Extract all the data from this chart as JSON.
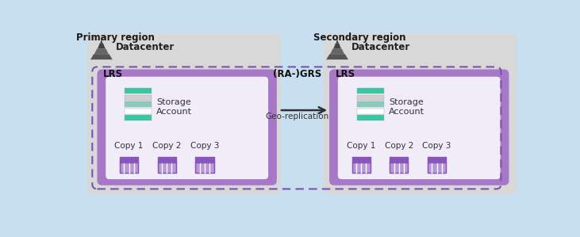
{
  "bg_color": "#c8dff0",
  "primary_label": "Primary region",
  "secondary_label": "Secondary region",
  "datacenter_label": "Datacenter",
  "lrs_label": "LRS",
  "grs_label": "(RA-)GRS",
  "geo_rep_label": "Geo-replication",
  "storage_label1": "Storage",
  "storage_label2": "Account",
  "copy_labels": [
    "Copy 1",
    "Copy 2",
    "Copy 3"
  ],
  "dc_gray": "#d8d8d8",
  "lrs_purple": "#a878c8",
  "lrs_inner": "#e8dff0",
  "inner_box": "#f0ecf8",
  "dashed_color": "#7755aa",
  "arrow_color": "#303030",
  "text_dark": "#1a1a1a",
  "teal1": "#38c8a0",
  "teal2": "#88ccc0",
  "white": "#ffffff",
  "storage_gray": "#d0d0d0",
  "cylinder_top": "#8855bb",
  "cylinder_body": "#b898d8",
  "cylinder_light": "#d8c8ee"
}
